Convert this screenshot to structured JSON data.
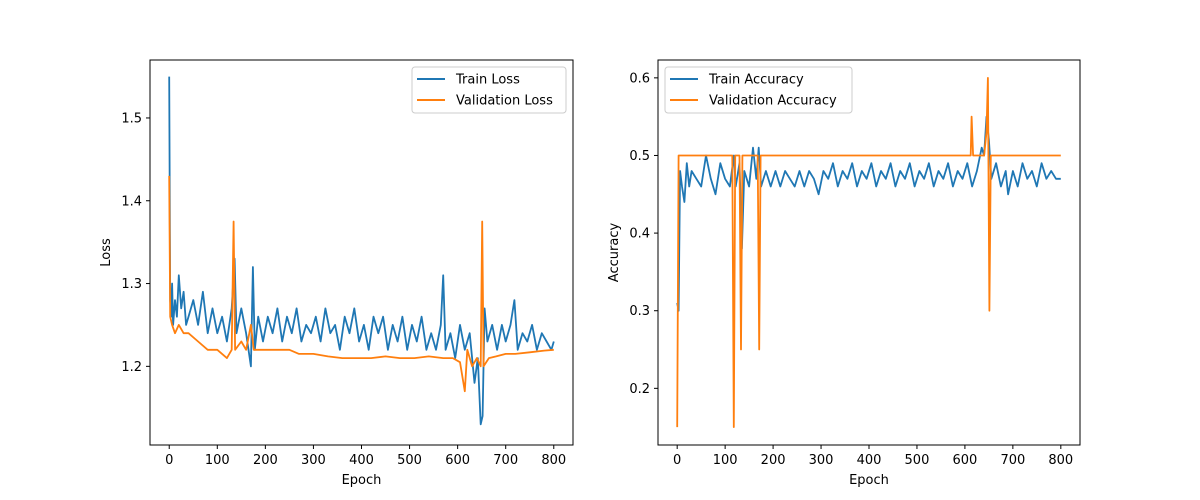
{
  "chart_data": [
    {
      "type": "line",
      "xlabel": "Epoch",
      "ylabel": "Loss",
      "xlim": [
        -40,
        840
      ],
      "ylim": [
        1.105,
        1.57
      ],
      "xticks": [
        0,
        100,
        200,
        300,
        400,
        500,
        600,
        700,
        800
      ],
      "yticks": [
        1.2,
        1.3,
        1.4,
        1.5
      ],
      "ytick_labels": [
        "1.2",
        "1.3",
        "1.4",
        "1.5"
      ],
      "legend": "top-right",
      "series": [
        {
          "name": "Train Loss",
          "color": "#1f77b4",
          "points": [
            [
              0,
              1.55
            ],
            [
              2,
              1.28
            ],
            [
              4,
              1.26
            ],
            [
              6,
              1.3
            ],
            [
              8,
              1.25
            ],
            [
              12,
              1.28
            ],
            [
              16,
              1.26
            ],
            [
              20,
              1.31
            ],
            [
              25,
              1.27
            ],
            [
              30,
              1.29
            ],
            [
              35,
              1.25
            ],
            [
              40,
              1.26
            ],
            [
              50,
              1.28
            ],
            [
              60,
              1.25
            ],
            [
              70,
              1.29
            ],
            [
              80,
              1.24
            ],
            [
              90,
              1.27
            ],
            [
              100,
              1.24
            ],
            [
              110,
              1.26
            ],
            [
              120,
              1.23
            ],
            [
              130,
              1.27
            ],
            [
              136,
              1.33
            ],
            [
              140,
              1.24
            ],
            [
              150,
              1.27
            ],
            [
              160,
              1.24
            ],
            [
              170,
              1.2
            ],
            [
              174,
              1.32
            ],
            [
              178,
              1.22
            ],
            [
              185,
              1.26
            ],
            [
              195,
              1.23
            ],
            [
              205,
              1.26
            ],
            [
              215,
              1.24
            ],
            [
              225,
              1.27
            ],
            [
              235,
              1.23
            ],
            [
              245,
              1.26
            ],
            [
              255,
              1.24
            ],
            [
              265,
              1.27
            ],
            [
              275,
              1.23
            ],
            [
              285,
              1.25
            ],
            [
              295,
              1.24
            ],
            [
              305,
              1.26
            ],
            [
              315,
              1.23
            ],
            [
              325,
              1.27
            ],
            [
              335,
              1.24
            ],
            [
              345,
              1.25
            ],
            [
              355,
              1.22
            ],
            [
              365,
              1.26
            ],
            [
              375,
              1.24
            ],
            [
              385,
              1.27
            ],
            [
              395,
              1.23
            ],
            [
              405,
              1.25
            ],
            [
              415,
              1.22
            ],
            [
              425,
              1.26
            ],
            [
              435,
              1.24
            ],
            [
              445,
              1.26
            ],
            [
              455,
              1.22
            ],
            [
              465,
              1.25
            ],
            [
              475,
              1.23
            ],
            [
              485,
              1.26
            ],
            [
              495,
              1.22
            ],
            [
              505,
              1.25
            ],
            [
              515,
              1.23
            ],
            [
              525,
              1.26
            ],
            [
              535,
              1.22
            ],
            [
              545,
              1.24
            ],
            [
              555,
              1.22
            ],
            [
              565,
              1.25
            ],
            [
              570,
              1.31
            ],
            [
              575,
              1.22
            ],
            [
              585,
              1.24
            ],
            [
              595,
              1.21
            ],
            [
              605,
              1.25
            ],
            [
              615,
              1.22
            ],
            [
              625,
              1.24
            ],
            [
              635,
              1.18
            ],
            [
              642,
              1.21
            ],
            [
              648,
              1.13
            ],
            [
              652,
              1.14
            ],
            [
              656,
              1.27
            ],
            [
              662,
              1.23
            ],
            [
              672,
              1.25
            ],
            [
              682,
              1.22
            ],
            [
              692,
              1.25
            ],
            [
              700,
              1.23
            ],
            [
              710,
              1.25
            ],
            [
              718,
              1.28
            ],
            [
              725,
              1.22
            ],
            [
              735,
              1.24
            ],
            [
              745,
              1.23
            ],
            [
              755,
              1.25
            ],
            [
              765,
              1.22
            ],
            [
              775,
              1.24
            ],
            [
              785,
              1.23
            ],
            [
              795,
              1.22
            ],
            [
              800,
              1.23
            ]
          ]
        },
        {
          "name": "Validation Loss",
          "color": "#ff7f0e",
          "points": [
            [
              0,
              1.43
            ],
            [
              2,
              1.26
            ],
            [
              6,
              1.25
            ],
            [
              12,
              1.24
            ],
            [
              20,
              1.25
            ],
            [
              30,
              1.24
            ],
            [
              40,
              1.24
            ],
            [
              60,
              1.23
            ],
            [
              80,
              1.22
            ],
            [
              100,
              1.22
            ],
            [
              120,
              1.21
            ],
            [
              130,
              1.22
            ],
            [
              134,
              1.375
            ],
            [
              137,
              1.22
            ],
            [
              150,
              1.23
            ],
            [
              160,
              1.22
            ],
            [
              170,
              1.25
            ],
            [
              176,
              1.22
            ],
            [
              190,
              1.22
            ],
            [
              210,
              1.22
            ],
            [
              230,
              1.22
            ],
            [
              250,
              1.22
            ],
            [
              270,
              1.215
            ],
            [
              300,
              1.215
            ],
            [
              330,
              1.212
            ],
            [
              360,
              1.21
            ],
            [
              390,
              1.21
            ],
            [
              420,
              1.21
            ],
            [
              450,
              1.212
            ],
            [
              480,
              1.21
            ],
            [
              510,
              1.21
            ],
            [
              540,
              1.212
            ],
            [
              570,
              1.21
            ],
            [
              590,
              1.21
            ],
            [
              605,
              1.205
            ],
            [
              615,
              1.17
            ],
            [
              620,
              1.22
            ],
            [
              630,
              1.2
            ],
            [
              640,
              1.21
            ],
            [
              648,
              1.2
            ],
            [
              651,
              1.375
            ],
            [
              654,
              1.2
            ],
            [
              665,
              1.21
            ],
            [
              680,
              1.212
            ],
            [
              700,
              1.215
            ],
            [
              720,
              1.215
            ],
            [
              750,
              1.217
            ],
            [
              780,
              1.219
            ],
            [
              800,
              1.22
            ]
          ]
        }
      ]
    },
    {
      "type": "line",
      "xlabel": "Epoch",
      "ylabel": "Accuracy",
      "xlim": [
        -40,
        840
      ],
      "ylim": [
        0.127,
        0.623
      ],
      "xticks": [
        0,
        100,
        200,
        300,
        400,
        500,
        600,
        700,
        800
      ],
      "yticks": [
        0.2,
        0.3,
        0.4,
        0.5,
        0.6
      ],
      "ytick_labels": [
        "0.2",
        "0.3",
        "0.4",
        "0.5",
        "0.6"
      ],
      "legend": "top-left",
      "series": [
        {
          "name": "Train Accuracy",
          "color": "#1f77b4",
          "points": [
            [
              0,
              0.31
            ],
            [
              3,
              0.3
            ],
            [
              6,
              0.48
            ],
            [
              10,
              0.46
            ],
            [
              15,
              0.44
            ],
            [
              20,
              0.49
            ],
            [
              25,
              0.46
            ],
            [
              30,
              0.48
            ],
            [
              40,
              0.47
            ],
            [
              50,
              0.46
            ],
            [
              60,
              0.5
            ],
            [
              70,
              0.47
            ],
            [
              80,
              0.45
            ],
            [
              90,
              0.49
            ],
            [
              100,
              0.47
            ],
            [
              110,
              0.46
            ],
            [
              118,
              0.5
            ],
            [
              122,
              0.46
            ],
            [
              130,
              0.49
            ],
            [
              135,
              0.38
            ],
            [
              140,
              0.48
            ],
            [
              150,
              0.46
            ],
            [
              158,
              0.51
            ],
            [
              165,
              0.47
            ],
            [
              170,
              0.51
            ],
            [
              175,
              0.46
            ],
            [
              185,
              0.48
            ],
            [
              195,
              0.46
            ],
            [
              205,
              0.48
            ],
            [
              215,
              0.46
            ],
            [
              225,
              0.48
            ],
            [
              235,
              0.47
            ],
            [
              245,
              0.46
            ],
            [
              255,
              0.48
            ],
            [
              265,
              0.46
            ],
            [
              275,
              0.48
            ],
            [
              285,
              0.47
            ],
            [
              295,
              0.45
            ],
            [
              305,
              0.48
            ],
            [
              315,
              0.47
            ],
            [
              325,
              0.49
            ],
            [
              335,
              0.46
            ],
            [
              345,
              0.48
            ],
            [
              355,
              0.47
            ],
            [
              365,
              0.49
            ],
            [
              375,
              0.46
            ],
            [
              385,
              0.48
            ],
            [
              395,
              0.47
            ],
            [
              405,
              0.49
            ],
            [
              415,
              0.46
            ],
            [
              425,
              0.48
            ],
            [
              435,
              0.47
            ],
            [
              445,
              0.49
            ],
            [
              455,
              0.46
            ],
            [
              465,
              0.48
            ],
            [
              475,
              0.47
            ],
            [
              485,
              0.49
            ],
            [
              495,
              0.46
            ],
            [
              505,
              0.48
            ],
            [
              515,
              0.47
            ],
            [
              525,
              0.49
            ],
            [
              535,
              0.46
            ],
            [
              545,
              0.48
            ],
            [
              555,
              0.47
            ],
            [
              565,
              0.49
            ],
            [
              575,
              0.46
            ],
            [
              585,
              0.48
            ],
            [
              595,
              0.47
            ],
            [
              605,
              0.49
            ],
            [
              615,
              0.46
            ],
            [
              625,
              0.48
            ],
            [
              635,
              0.51
            ],
            [
              640,
              0.5
            ],
            [
              645,
              0.55
            ],
            [
              650,
              0.52
            ],
            [
              655,
              0.47
            ],
            [
              665,
              0.49
            ],
            [
              675,
              0.46
            ],
            [
              685,
              0.48
            ],
            [
              690,
              0.45
            ],
            [
              700,
              0.48
            ],
            [
              710,
              0.46
            ],
            [
              720,
              0.49
            ],
            [
              730,
              0.47
            ],
            [
              740,
              0.48
            ],
            [
              750,
              0.46
            ],
            [
              760,
              0.49
            ],
            [
              770,
              0.47
            ],
            [
              780,
              0.48
            ],
            [
              790,
              0.47
            ],
            [
              800,
              0.47
            ]
          ]
        },
        {
          "name": "Validation Accuracy",
          "color": "#ff7f0e",
          "points": [
            [
              0,
              0.15
            ],
            [
              3,
              0.5
            ],
            [
              115,
              0.5
            ],
            [
              118,
              0.15
            ],
            [
              121,
              0.5
            ],
            [
              130,
              0.5
            ],
            [
              133,
              0.25
            ],
            [
              136,
              0.5
            ],
            [
              168,
              0.5
            ],
            [
              171,
              0.25
            ],
            [
              174,
              0.5
            ],
            [
              612,
              0.5
            ],
            [
              614,
              0.55
            ],
            [
              617,
              0.5
            ],
            [
              640,
              0.5
            ],
            [
              645,
              0.53
            ],
            [
              648,
              0.6
            ],
            [
              651,
              0.3
            ],
            [
              654,
              0.5
            ],
            [
              800,
              0.5
            ]
          ]
        }
      ]
    }
  ]
}
